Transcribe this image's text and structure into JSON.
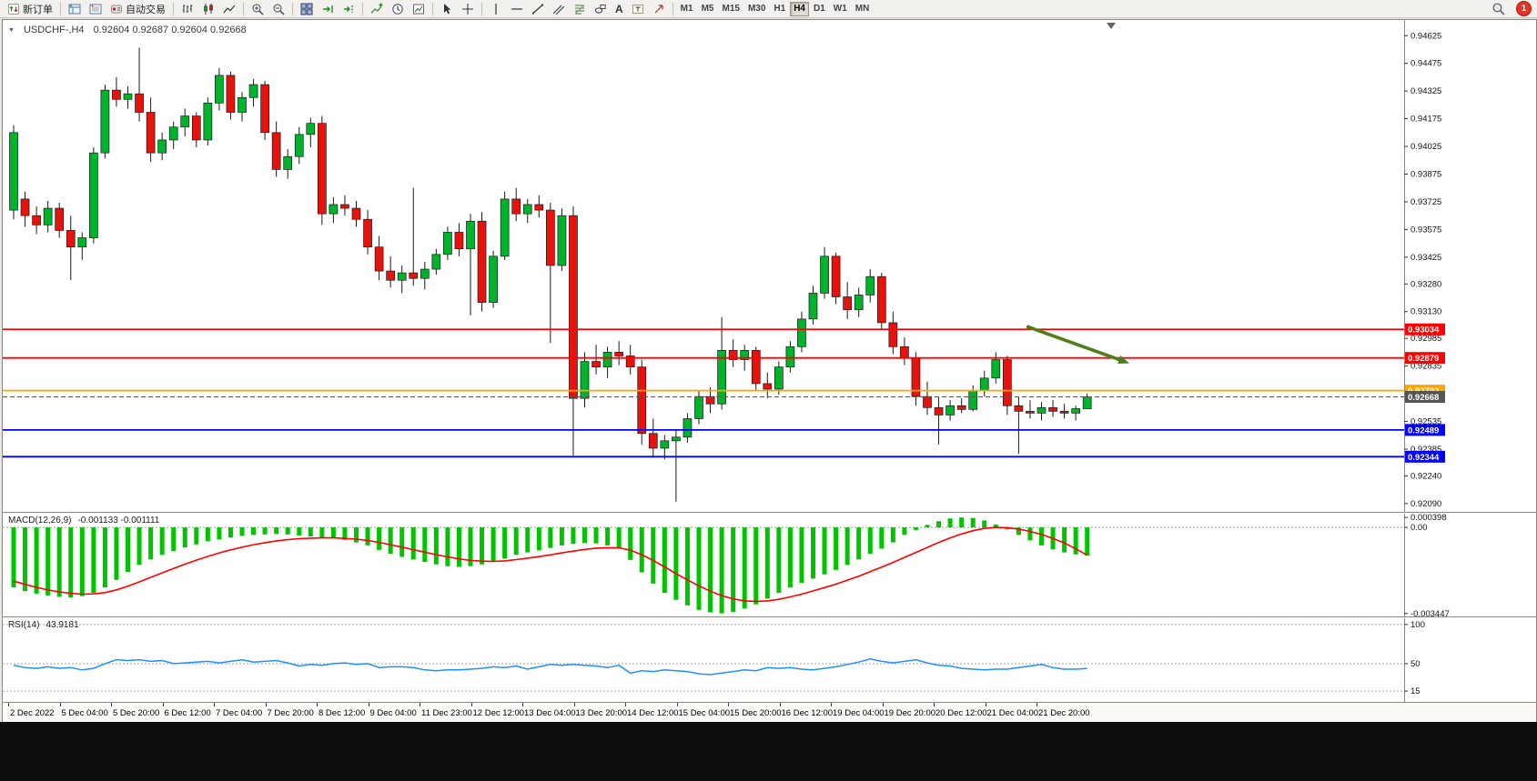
{
  "toolbar": {
    "new_order_label": "新订单",
    "auto_trading_label": "自动交易",
    "text_tool_label": "A",
    "timeframes": [
      "M1",
      "M5",
      "M15",
      "M30",
      "H1",
      "H4",
      "D1",
      "W1",
      "MN"
    ],
    "active_timeframe": "H4",
    "notification_badge": "1"
  },
  "chart_header": {
    "symbol_period": "USDCHF-,H4",
    "ohlc": "0.92604 0.92687 0.92604 0.92668"
  },
  "macd_header": {
    "name": "MACD(12,26,9)",
    "values": "-0.001133 -0.001111"
  },
  "rsi_header": {
    "name": "RSI(14)",
    "value": "43.9181"
  },
  "chart_data": [
    {
      "type": "candlestick",
      "title": "USDCHF-,H4",
      "ohlc_display": [
        "0.92604",
        "0.92687",
        "0.92604",
        "0.92668"
      ],
      "ylim": [
        0.92045,
        0.9471
      ],
      "colors": {
        "up": "#00b32c",
        "down": "#e8120c",
        "wick": "#1a1a1a"
      },
      "y_axis_labels": [
        "0.94625",
        "0.94475",
        "0.94325",
        "0.94175",
        "0.94025",
        "0.93875",
        "0.93725",
        "0.93575",
        "0.93425",
        "0.93280",
        "0.93130",
        "0.92985",
        "0.92835",
        "0.92685",
        "0.92535",
        "0.92385",
        "0.92240",
        "0.92090"
      ],
      "x_labels": [
        "2 Dec 2022",
        "5 Dec 04:00",
        "5 Dec 20:00",
        "6 Dec 12:00",
        "7 Dec 04:00",
        "7 Dec 20:00",
        "8 Dec 12:00",
        "9 Dec 04:00",
        "11 Dec 23:00",
        "12 Dec 12:00",
        "13 Dec 04:00",
        "13 Dec 20:00",
        "14 Dec 12:00",
        "15 Dec 04:00",
        "15 Dec 20:00",
        "16 Dec 12:00",
        "19 Dec 04:00",
        "19 Dec 20:00",
        "20 Dec 12:00",
        "21 Dec 04:00",
        "21 Dec 20:00"
      ],
      "levels": [
        {
          "name": "resistance-line-1",
          "price": 0.93034,
          "label": "0.93034",
          "color": "#ff0000",
          "width": 1.8
        },
        {
          "name": "resistance-line-2",
          "price": 0.92879,
          "label": "0.92879",
          "color": "#ff0000",
          "width": 1.8
        },
        {
          "name": "pivot-line",
          "price": 0.92702,
          "label": "0.92702",
          "color": "#ffa500",
          "width": 1.8
        },
        {
          "name": "current-price-line",
          "price": 0.92668,
          "label": "0.92668",
          "color": "#555555",
          "width": 1,
          "dashed": true
        },
        {
          "name": "support-line-1",
          "price": 0.92489,
          "label": "0.92489",
          "color": "#0000ff",
          "width": 1.8
        },
        {
          "name": "support-line-2",
          "price": 0.92344,
          "label": "0.92344",
          "color": "#0000ff",
          "width": 1.8
        }
      ],
      "arrow": {
        "from_bar": 88.7,
        "from_price": 0.9305,
        "to_bar": 97.7,
        "to_price": 0.9285,
        "color": "#4e7d1e"
      },
      "candles": [
        [
          0.9368,
          0.9414,
          0.9363,
          0.941
        ],
        [
          0.9374,
          0.9378,
          0.9359,
          0.9365
        ],
        [
          0.9365,
          0.937,
          0.9355,
          0.936
        ],
        [
          0.936,
          0.9373,
          0.9356,
          0.9369
        ],
        [
          0.9369,
          0.9372,
          0.9353,
          0.9357
        ],
        [
          0.9357,
          0.9365,
          0.933,
          0.9348
        ],
        [
          0.9348,
          0.9356,
          0.9341,
          0.9353
        ],
        [
          0.9353,
          0.9402,
          0.935,
          0.9399
        ],
        [
          0.9399,
          0.9436,
          0.9396,
          0.9433
        ],
        [
          0.9433,
          0.944,
          0.9424,
          0.9428
        ],
        [
          0.9428,
          0.9435,
          0.9423,
          0.9431
        ],
        [
          0.9431,
          0.9456,
          0.9416,
          0.9421
        ],
        [
          0.9421,
          0.9429,
          0.9394,
          0.9399
        ],
        [
          0.9399,
          0.941,
          0.9395,
          0.9406
        ],
        [
          0.9406,
          0.9416,
          0.9401,
          0.9413
        ],
        [
          0.9413,
          0.9423,
          0.9408,
          0.9419
        ],
        [
          0.9419,
          0.9421,
          0.9402,
          0.9406
        ],
        [
          0.9406,
          0.9429,
          0.9403,
          0.9426
        ],
        [
          0.9426,
          0.9445,
          0.9422,
          0.9441
        ],
        [
          0.9441,
          0.9443,
          0.9417,
          0.9421
        ],
        [
          0.9421,
          0.9432,
          0.9416,
          0.9429
        ],
        [
          0.9429,
          0.9439,
          0.9424,
          0.9436
        ],
        [
          0.9436,
          0.9438,
          0.9406,
          0.941
        ],
        [
          0.941,
          0.9416,
          0.9386,
          0.939
        ],
        [
          0.939,
          0.9401,
          0.9385,
          0.9397
        ],
        [
          0.9397,
          0.9413,
          0.9393,
          0.9409
        ],
        [
          0.9409,
          0.9418,
          0.9402,
          0.9415
        ],
        [
          0.9415,
          0.9419,
          0.936,
          0.9366
        ],
        [
          0.9366,
          0.9375,
          0.9361,
          0.9371
        ],
        [
          0.9371,
          0.9376,
          0.9365,
          0.9369
        ],
        [
          0.9369,
          0.9373,
          0.9359,
          0.9363
        ],
        [
          0.9363,
          0.9368,
          0.9344,
          0.9348
        ],
        [
          0.9348,
          0.9354,
          0.933,
          0.9335
        ],
        [
          0.9335,
          0.9343,
          0.9326,
          0.933
        ],
        [
          0.933,
          0.9338,
          0.9323,
          0.9334
        ],
        [
          0.9334,
          0.938,
          0.9327,
          0.9331
        ],
        [
          0.9331,
          0.934,
          0.9325,
          0.9336
        ],
        [
          0.9336,
          0.9347,
          0.9333,
          0.9344
        ],
        [
          0.9344,
          0.9359,
          0.9341,
          0.9356
        ],
        [
          0.9356,
          0.9361,
          0.9343,
          0.9347
        ],
        [
          0.9347,
          0.9366,
          0.9311,
          0.9362
        ],
        [
          0.9362,
          0.9367,
          0.9313,
          0.9318
        ],
        [
          0.9318,
          0.9346,
          0.9315,
          0.9343
        ],
        [
          0.9343,
          0.9378,
          0.9341,
          0.9374
        ],
        [
          0.9374,
          0.938,
          0.9362,
          0.9366
        ],
        [
          0.9366,
          0.9374,
          0.9361,
          0.9371
        ],
        [
          0.9371,
          0.9376,
          0.9364,
          0.9368
        ],
        [
          0.9368,
          0.9372,
          0.9296,
          0.9338
        ],
        [
          0.9338,
          0.9369,
          0.9335,
          0.9365
        ],
        [
          0.9365,
          0.937,
          0.9235,
          0.9266
        ],
        [
          0.9266,
          0.9291,
          0.9261,
          0.9286
        ],
        [
          0.9286,
          0.9295,
          0.9279,
          0.9283
        ],
        [
          0.9283,
          0.9294,
          0.9277,
          0.9291
        ],
        [
          0.9291,
          0.9297,
          0.9284,
          0.9289
        ],
        [
          0.9289,
          0.9295,
          0.9279,
          0.9283
        ],
        [
          0.9283,
          0.9287,
          0.9241,
          0.9247
        ],
        [
          0.9247,
          0.9255,
          0.9234,
          0.9239
        ],
        [
          0.9239,
          0.9246,
          0.9233,
          0.9243
        ],
        [
          0.9243,
          0.9249,
          0.921,
          0.9245
        ],
        [
          0.9245,
          0.9258,
          0.9242,
          0.9255
        ],
        [
          0.9255,
          0.927,
          0.9252,
          0.9267
        ],
        [
          0.9267,
          0.9272,
          0.9258,
          0.9263
        ],
        [
          0.9263,
          0.931,
          0.926,
          0.9292
        ],
        [
          0.9292,
          0.9298,
          0.9283,
          0.9287
        ],
        [
          0.9287,
          0.9295,
          0.9281,
          0.9292
        ],
        [
          0.9292,
          0.9294,
          0.927,
          0.9274
        ],
        [
          0.9274,
          0.928,
          0.9266,
          0.9271
        ],
        [
          0.9271,
          0.9286,
          0.9268,
          0.9283
        ],
        [
          0.9283,
          0.9297,
          0.928,
          0.9294
        ],
        [
          0.9294,
          0.9313,
          0.9291,
          0.9309
        ],
        [
          0.9309,
          0.9327,
          0.9306,
          0.9323
        ],
        [
          0.9323,
          0.9348,
          0.932,
          0.9343
        ],
        [
          0.9343,
          0.9345,
          0.9317,
          0.9321
        ],
        [
          0.9321,
          0.9329,
          0.9309,
          0.9314
        ],
        [
          0.9314,
          0.9326,
          0.931,
          0.9322
        ],
        [
          0.9322,
          0.9336,
          0.9318,
          0.9332
        ],
        [
          0.9332,
          0.9334,
          0.9303,
          0.9307
        ],
        [
          0.9307,
          0.9313,
          0.929,
          0.9294
        ],
        [
          0.9294,
          0.9299,
          0.9284,
          0.9288
        ],
        [
          0.9288,
          0.9291,
          0.9262,
          0.9267
        ],
        [
          0.9267,
          0.9275,
          0.9257,
          0.9261
        ],
        [
          0.9261,
          0.9267,
          0.9241,
          0.9257
        ],
        [
          0.9257,
          0.9265,
          0.9254,
          0.9262
        ],
        [
          0.9262,
          0.9266,
          0.9258,
          0.926
        ],
        [
          0.926,
          0.9273,
          0.9259,
          0.927
        ],
        [
          0.927,
          0.9281,
          0.9267,
          0.9277
        ],
        [
          0.9277,
          0.9291,
          0.9274,
          0.9287
        ],
        [
          0.9287,
          0.9289,
          0.9257,
          0.9262
        ],
        [
          0.9262,
          0.9267,
          0.9236,
          0.9259
        ],
        [
          0.9259,
          0.9265,
          0.9255,
          0.9258
        ],
        [
          0.9258,
          0.9264,
          0.9254,
          0.9261
        ],
        [
          0.9261,
          0.9265,
          0.9256,
          0.9259
        ],
        [
          0.9259,
          0.9263,
          0.9255,
          0.9258
        ],
        [
          0.9258,
          0.9262,
          0.9254,
          0.92604
        ],
        [
          0.92604,
          0.92687,
          0.92604,
          0.92668
        ]
      ]
    },
    {
      "type": "bar",
      "name": "MACD",
      "label": "MACD(12,26,9)",
      "values_display": "-0.001133 -0.001111",
      "ylim": [
        -0.0036,
        0.00055
      ],
      "axis_labels": [
        "0.000398",
        "0.00",
        "-0.003447"
      ],
      "axis_values": [
        0.000398,
        0,
        -0.003447
      ],
      "colors": {
        "histogram": "#00c400",
        "signal": "#ff0000"
      },
      "histogram": [
        -0.0024,
        -0.00255,
        -0.00265,
        -0.00272,
        -0.00278,
        -0.0028,
        -0.00275,
        -0.00262,
        -0.0024,
        -0.0021,
        -0.00178,
        -0.0015,
        -0.00128,
        -0.0011,
        -0.00095,
        -0.0008,
        -0.00068,
        -0.00055,
        -0.00048,
        -0.0004,
        -0.00034,
        -0.0003,
        -0.00028,
        -0.00026,
        -0.00028,
        -0.00032,
        -0.00036,
        -0.0004,
        -0.00044,
        -0.0005,
        -0.0006,
        -0.00072,
        -0.0009,
        -0.00105,
        -0.00118,
        -0.00128,
        -0.00138,
        -0.00148,
        -0.00155,
        -0.00158,
        -0.00155,
        -0.00148,
        -0.00138,
        -0.00125,
        -0.0011,
        -0.001,
        -0.00092,
        -0.00082,
        -0.00072,
        -0.00066,
        -0.00062,
        -0.00064,
        -0.00072,
        -0.00085,
        -0.0013,
        -0.0018,
        -0.00225,
        -0.00262,
        -0.0029,
        -0.00312,
        -0.0033,
        -0.0034,
        -0.00344,
        -0.00338,
        -0.00325,
        -0.00308,
        -0.00285,
        -0.00262,
        -0.0024,
        -0.00222,
        -0.00205,
        -0.00188,
        -0.0017,
        -0.0015,
        -0.00128,
        -0.00105,
        -0.00085,
        -0.0006,
        -0.0003,
        -0.0001,
        0.0001,
        0.00025,
        0.00036,
        0.0004,
        0.00038,
        0.00028,
        0.00012,
        -8e-05,
        -0.0003,
        -0.00052,
        -0.00072,
        -0.00088,
        -0.001,
        -0.00108,
        -0.00113
      ],
      "signal": [
        -0.00215,
        -0.00228,
        -0.0024,
        -0.0025,
        -0.00258,
        -0.00264,
        -0.00267,
        -0.00266,
        -0.00261,
        -0.0025,
        -0.00235,
        -0.00218,
        -0.002,
        -0.00182,
        -0.00164,
        -0.00147,
        -0.00131,
        -0.00116,
        -0.00102,
        -0.0009,
        -0.00079,
        -0.00069,
        -0.00061,
        -0.00054,
        -0.00049,
        -0.00045,
        -0.00043,
        -0.00042,
        -0.00042,
        -0.00044,
        -0.00047,
        -0.00052,
        -0.0006,
        -0.00069,
        -0.00079,
        -0.00089,
        -0.00099,
        -0.00109,
        -0.00118,
        -0.00126,
        -0.00132,
        -0.00135,
        -0.00136,
        -0.00134,
        -0.00129,
        -0.00123,
        -0.00117,
        -0.0011,
        -0.00102,
        -0.00095,
        -0.00088,
        -0.00083,
        -0.00081,
        -0.00082,
        -0.00091,
        -0.00109,
        -0.00132,
        -0.00158,
        -0.00185,
        -0.0021,
        -0.00234,
        -0.00255,
        -0.00273,
        -0.00286,
        -0.00294,
        -0.00296,
        -0.00294,
        -0.00288,
        -0.00278,
        -0.00267,
        -0.00254,
        -0.00241,
        -0.00227,
        -0.00211,
        -0.00195,
        -0.00177,
        -0.00159,
        -0.0014,
        -0.0012,
        -0.001,
        -0.0008,
        -0.0006,
        -0.00042,
        -0.00026,
        -0.00013,
        -4e-05,
        0.0,
        -1e-05,
        -7e-05,
        -0.00016,
        -0.00028,
        -0.00044,
        -0.00062,
        -0.00086,
        -0.00111
      ]
    },
    {
      "type": "line",
      "name": "RSI",
      "label": "RSI(14)",
      "value_display": "43.9181",
      "ylim": [
        0,
        108
      ],
      "levels": [
        100,
        50,
        15
      ],
      "axis_labels": [
        "100",
        "50",
        "15"
      ],
      "color": "#1e90ff",
      "values": [
        48,
        45,
        44,
        46,
        44,
        45,
        42,
        44,
        50,
        55,
        54,
        55,
        53,
        54,
        50,
        51,
        52,
        53,
        51,
        53,
        55,
        52,
        53,
        54,
        51,
        47,
        49,
        48,
        50,
        51,
        49,
        50,
        45,
        46,
        46,
        45,
        42,
        41,
        42,
        42,
        43,
        44,
        46,
        45,
        47,
        43,
        46,
        49,
        48,
        49,
        48,
        47,
        45,
        48,
        38,
        41,
        40,
        42,
        41,
        40,
        37,
        36,
        38,
        40,
        42,
        41,
        45,
        44,
        45,
        43,
        42,
        44,
        46,
        49,
        52,
        56,
        53,
        51,
        53,
        55,
        51,
        48,
        47,
        44,
        43,
        42,
        43,
        43,
        45,
        47,
        49,
        45,
        43,
        43,
        43.9
      ]
    }
  ]
}
